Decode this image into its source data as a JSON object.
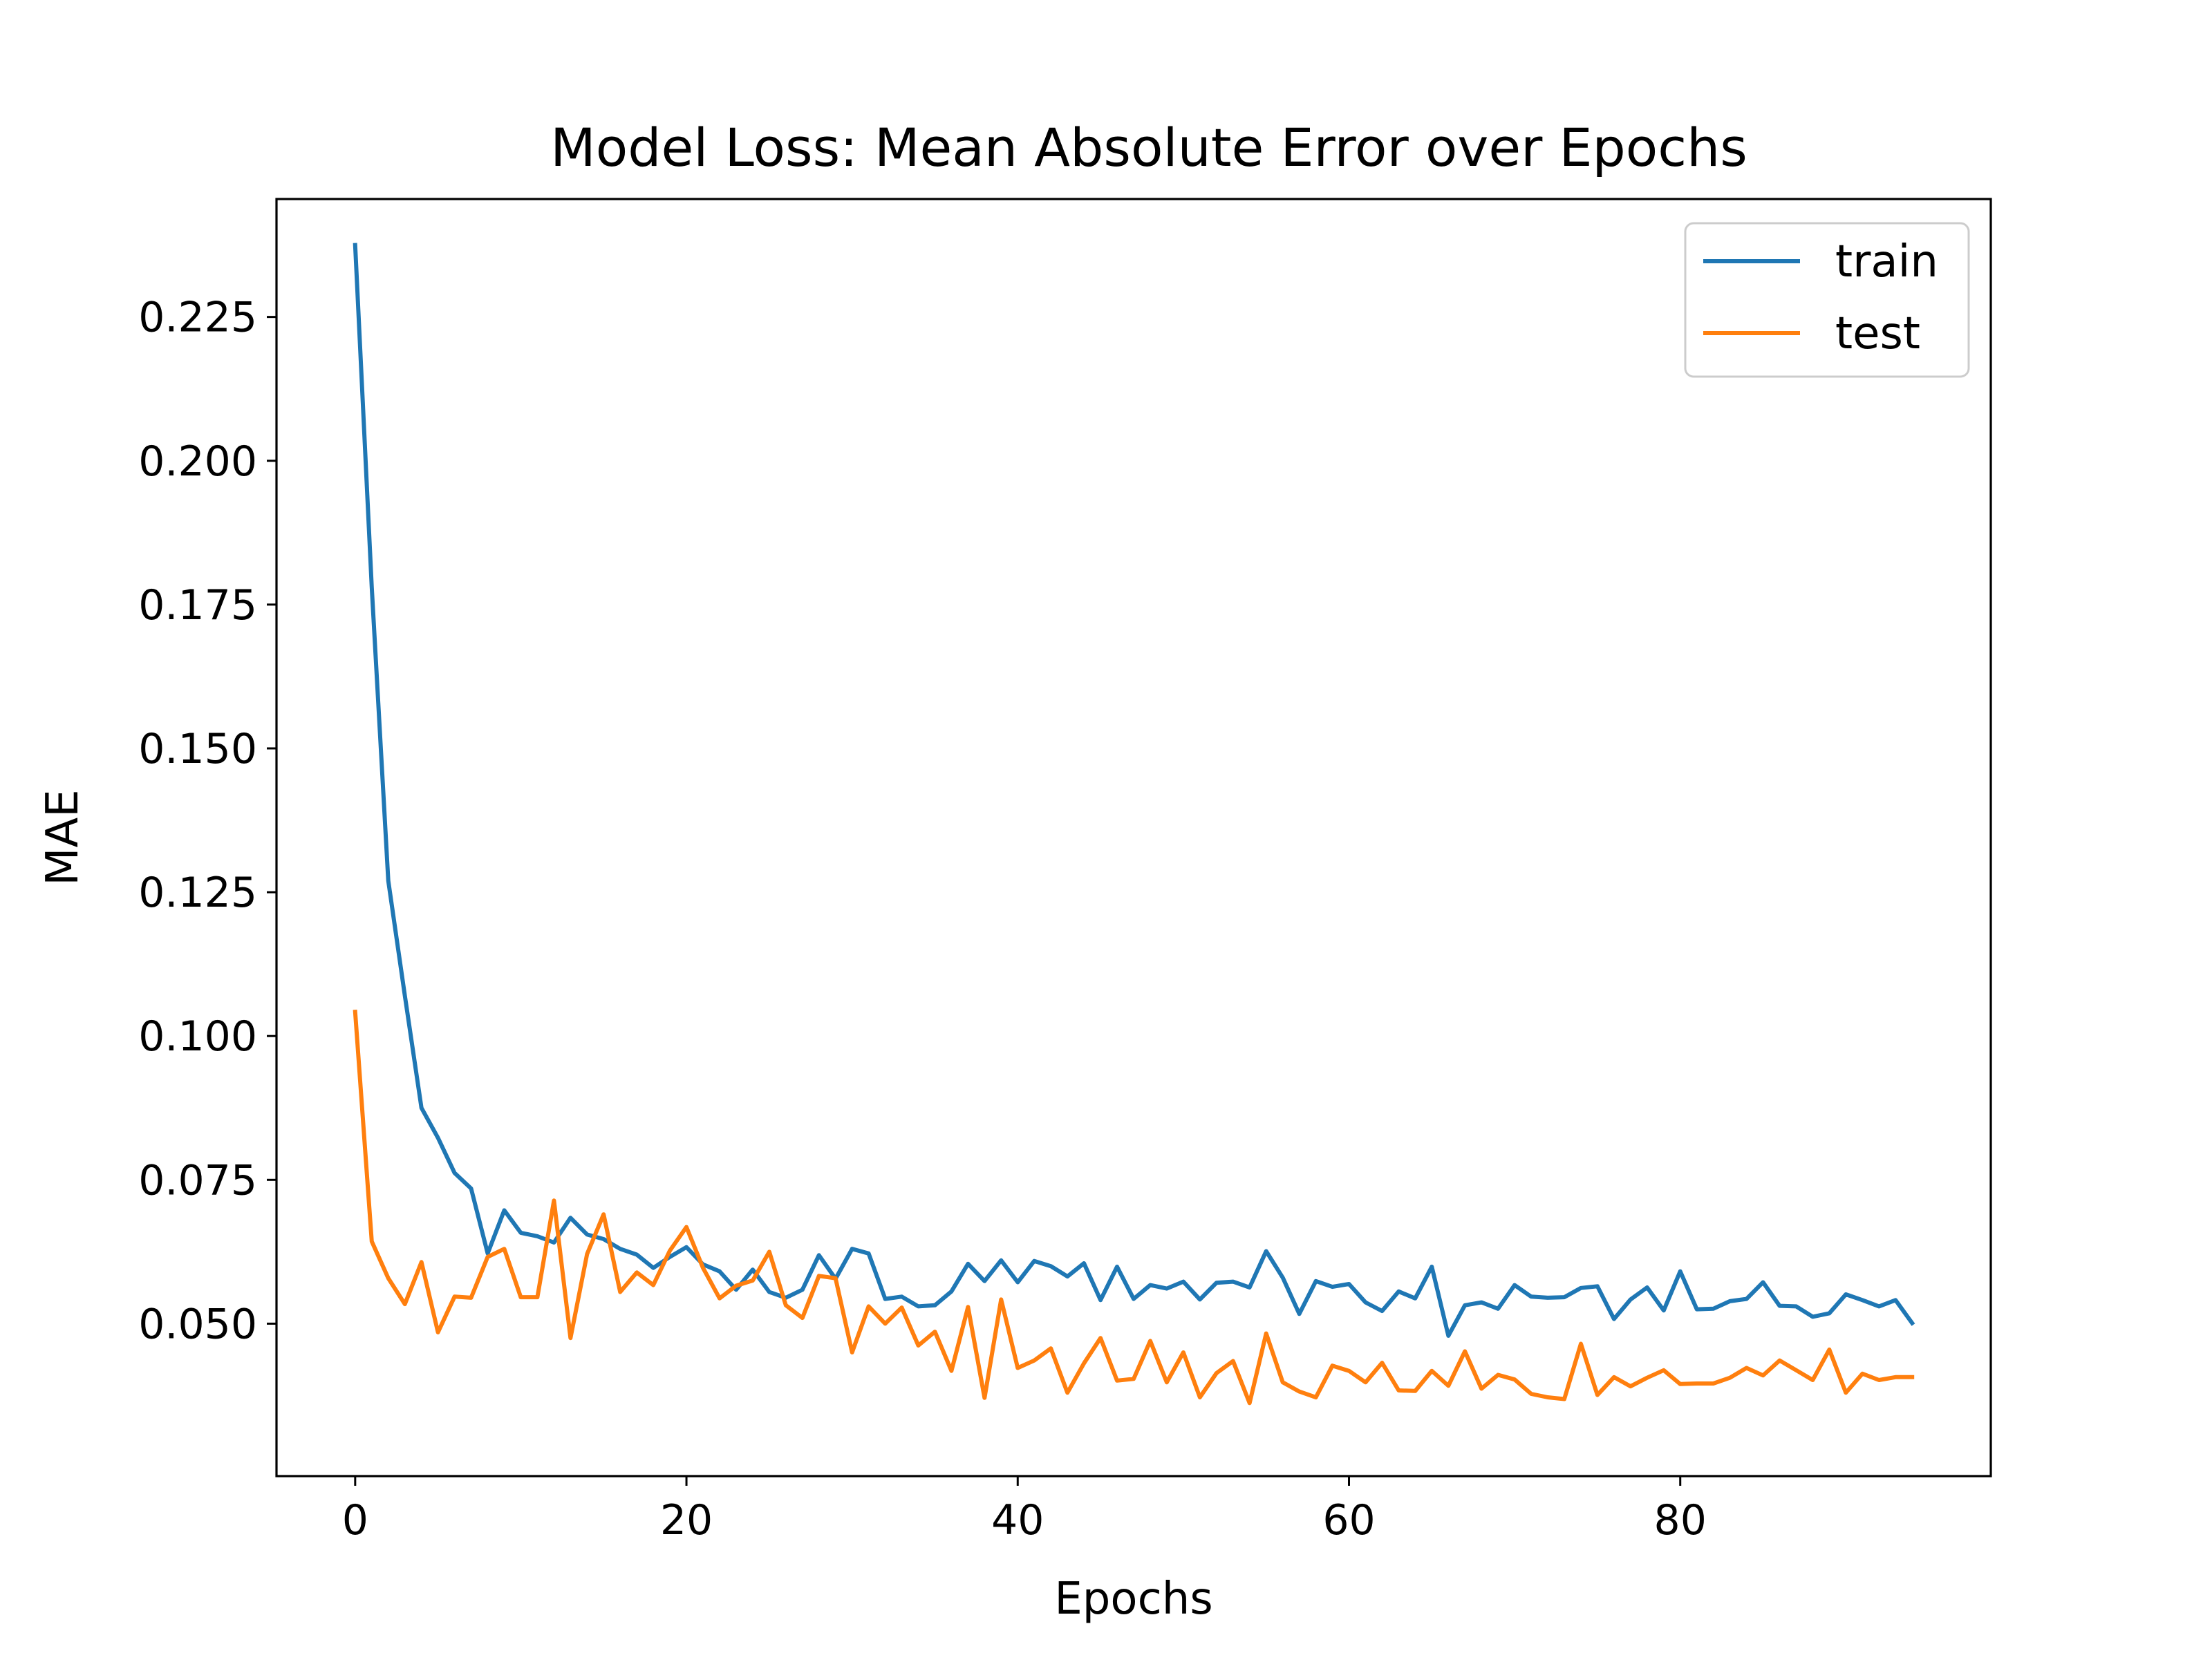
{
  "chart_data": {
    "type": "line",
    "title": "Model Loss: Mean Absolute Error over Epochs",
    "xlabel": "Epochs",
    "ylabel": "MAE",
    "xlim": [
      -4.75,
      98.75
    ],
    "ylim": [
      0.0235,
      0.2455
    ],
    "xticks": [
      0,
      20,
      40,
      60,
      80
    ],
    "xtick_labels": [
      "0",
      "20",
      "40",
      "60",
      "80"
    ],
    "yticks": [
      0.05,
      0.075,
      0.1,
      0.125,
      0.15,
      0.175,
      0.2,
      0.225
    ],
    "ytick_labels": [
      "0.050",
      "0.075",
      "0.100",
      "0.125",
      "0.150",
      "0.175",
      "0.200",
      "0.225"
    ],
    "grid": false,
    "legend_position": "upper-right",
    "series": [
      {
        "name": "train",
        "color": "#1f77b4",
        "x": [
          0,
          1,
          2,
          3,
          4,
          5,
          6,
          7,
          8,
          9,
          10,
          11,
          12,
          13,
          14,
          15,
          16,
          17,
          18,
          19,
          20,
          21,
          22,
          23,
          24,
          25,
          26,
          27,
          28,
          29,
          30,
          31,
          32,
          33,
          34,
          35,
          36,
          37,
          38,
          39,
          40,
          41,
          42,
          43,
          44,
          45,
          46,
          47,
          48,
          49,
          50,
          51,
          52,
          53,
          54,
          55,
          56,
          57,
          58,
          59,
          60,
          61,
          62,
          63,
          64,
          65,
          66,
          67,
          68,
          69,
          70,
          71,
          72,
          73,
          74,
          75,
          76,
          77,
          78,
          79,
          80,
          81,
          82,
          83,
          84,
          85,
          86,
          87,
          88,
          89,
          90,
          91,
          92,
          93,
          94
        ],
        "values": [
          0.2375,
          0.178,
          0.127,
          0.107,
          0.0875,
          0.0823,
          0.0762,
          0.0735,
          0.0622,
          0.0697,
          0.0658,
          0.0652,
          0.0641,
          0.0684,
          0.0655,
          0.0647,
          0.063,
          0.062,
          0.0597,
          0.0616,
          0.0633,
          0.0603,
          0.0591,
          0.0559,
          0.0594,
          0.0555,
          0.0545,
          0.0559,
          0.0619,
          0.0578,
          0.063,
          0.0622,
          0.0543,
          0.0547,
          0.053,
          0.0532,
          0.0556,
          0.0604,
          0.0574,
          0.061,
          0.0572,
          0.0609,
          0.06,
          0.0582,
          0.0605,
          0.0541,
          0.0599,
          0.0543,
          0.0567,
          0.0561,
          0.0573,
          0.0542,
          0.0571,
          0.0573,
          0.0563,
          0.0626,
          0.058,
          0.0517,
          0.0574,
          0.0564,
          0.0569,
          0.0537,
          0.0522,
          0.0556,
          0.0544,
          0.0599,
          0.0479,
          0.0532,
          0.0537,
          0.0526,
          0.0567,
          0.0547,
          0.0545,
          0.0546,
          0.0562,
          0.0565,
          0.0508,
          0.0542,
          0.0563,
          0.0523,
          0.0591,
          0.0525,
          0.0526,
          0.0539,
          0.0543,
          0.0572,
          0.0531,
          0.053,
          0.0512,
          0.0518,
          0.0551,
          0.0541,
          0.053,
          0.0541,
          0.0501
        ]
      },
      {
        "name": "test",
        "color": "#ff7f0e",
        "x": [
          0,
          1,
          2,
          3,
          4,
          5,
          6,
          7,
          8,
          9,
          10,
          11,
          12,
          13,
          14,
          15,
          16,
          17,
          18,
          19,
          20,
          21,
          22,
          23,
          24,
          25,
          26,
          27,
          28,
          29,
          30,
          31,
          32,
          33,
          34,
          35,
          36,
          37,
          38,
          39,
          40,
          41,
          42,
          43,
          44,
          45,
          46,
          47,
          48,
          49,
          50,
          51,
          52,
          53,
          54,
          55,
          56,
          57,
          58,
          59,
          60,
          61,
          62,
          63,
          64,
          65,
          66,
          67,
          68,
          69,
          70,
          71,
          72,
          73,
          74,
          75,
          76,
          77,
          78,
          79,
          80,
          81,
          82,
          83,
          84,
          85,
          86,
          87,
          88,
          89,
          90,
          91,
          92,
          93,
          94
        ],
        "values": [
          0.1042,
          0.0643,
          0.0579,
          0.0534,
          0.0607,
          0.0485,
          0.0547,
          0.0545,
          0.0616,
          0.063,
          0.0546,
          0.0546,
          0.0714,
          0.0475,
          0.0621,
          0.069,
          0.0555,
          0.0589,
          0.0567,
          0.0627,
          0.0668,
          0.0597,
          0.0544,
          0.0566,
          0.0575,
          0.0625,
          0.0532,
          0.051,
          0.0583,
          0.0579,
          0.045,
          0.053,
          0.05,
          0.0528,
          0.0462,
          0.0486,
          0.0418,
          0.0529,
          0.0371,
          0.0542,
          0.0423,
          0.0436,
          0.0457,
          0.038,
          0.0431,
          0.0475,
          0.0401,
          0.0404,
          0.047,
          0.0398,
          0.045,
          0.0372,
          0.0414,
          0.0435,
          0.0362,
          0.0483,
          0.0398,
          0.0382,
          0.0372,
          0.0427,
          0.0418,
          0.0398,
          0.0432,
          0.0384,
          0.0383,
          0.0418,
          0.0392,
          0.0452,
          0.0387,
          0.0411,
          0.0403,
          0.0378,
          0.0372,
          0.0369,
          0.0465,
          0.0376,
          0.0407,
          0.0391,
          0.0406,
          0.0419,
          0.0395,
          0.0396,
          0.0396,
          0.0406,
          0.0423,
          0.041,
          0.0436,
          0.0419,
          0.0402,
          0.0455,
          0.038,
          0.0413,
          0.0402,
          0.0407,
          0.0407
        ]
      }
    ]
  }
}
